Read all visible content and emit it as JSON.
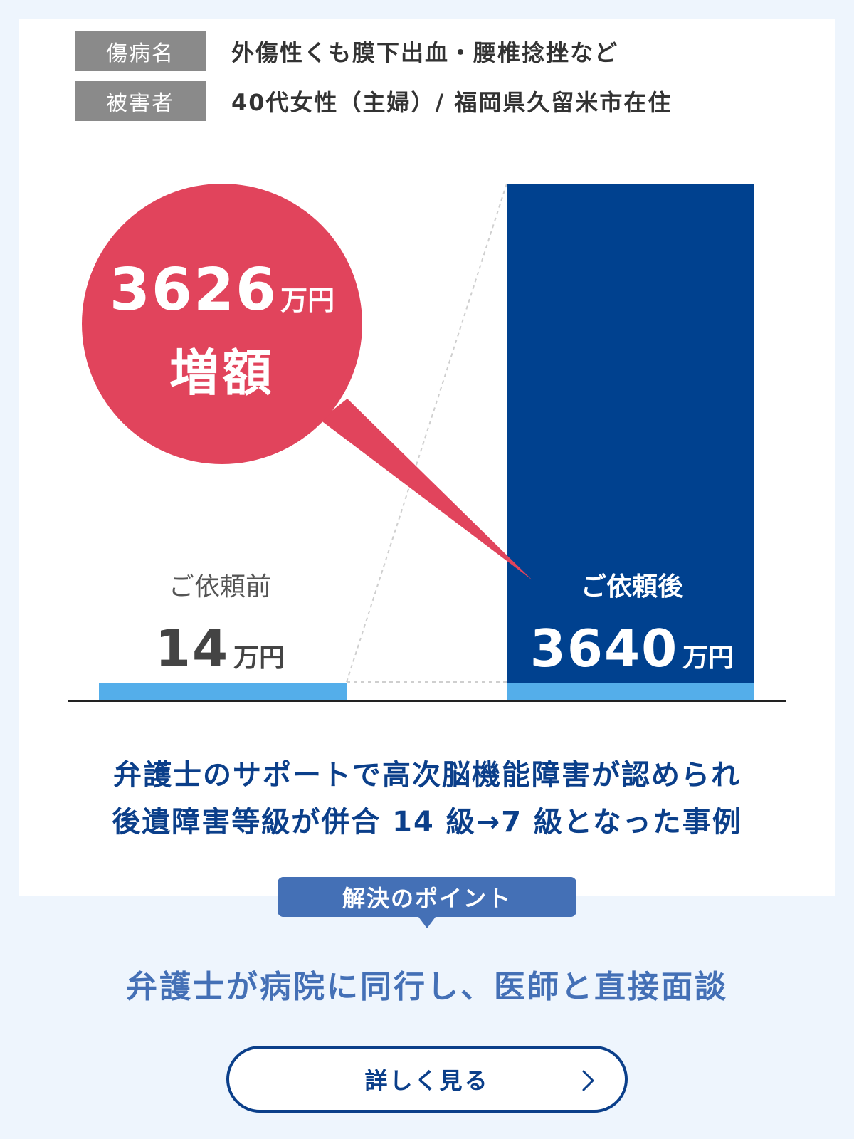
{
  "info": {
    "injury_label": "傷病名",
    "injury_value": "外傷性くも膜下出血・腰椎捻挫など",
    "victim_label": "被害者",
    "victim_value": "40代女性（主婦）/ 福岡県久留米市在住"
  },
  "increase": {
    "amount": "3626",
    "unit": "万円",
    "word": "増額"
  },
  "chart_data": {
    "type": "bar",
    "categories": [
      "ご依頼前",
      "ご依頼後"
    ],
    "values": [
      14,
      3640
    ],
    "unit": "万円",
    "ylim": [
      0,
      3640
    ],
    "colors": {
      "before": "#54aeea",
      "after": "#00418f",
      "baseline_accent": "#54aeea"
    }
  },
  "bars": {
    "before_label": "ご依頼前",
    "before_value": "14",
    "before_unit": "万円",
    "after_label": "ご依頼後",
    "after_value": "3640",
    "after_unit": "万円"
  },
  "headline": {
    "line1": "弁護士のサポートで高次脳機能障害が認められ",
    "line2": "後遺障害等級が併合 14 級→7 級となった事例"
  },
  "point": {
    "tag": "解決のポイント",
    "text": "弁護士が病院に同行し、医師と直接面談"
  },
  "button": {
    "label": "詳しく見る",
    "icon": "chevron-right-icon"
  }
}
